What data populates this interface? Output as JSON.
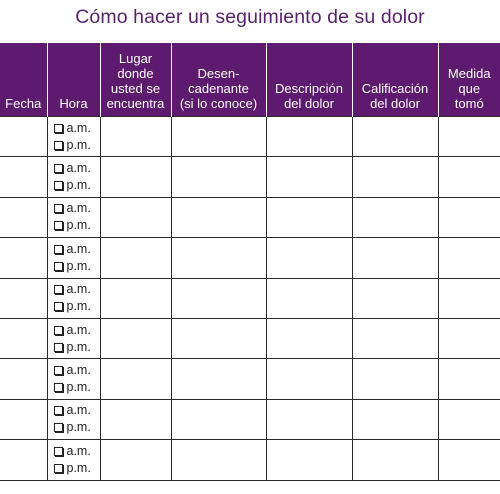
{
  "title": "Cómo hacer un seguimiento de su dolor",
  "columns": [
    "Fecha",
    "Hora",
    "Lugar donde usted se encuentra",
    "Desen- cadenante (si lo conoce)",
    "Descripción del dolor",
    "Calificación del dolor",
    "Medida que tomó"
  ],
  "column_lines": [
    [
      "Fecha"
    ],
    [
      "Hora"
    ],
    [
      "Lugar",
      "donde",
      "usted se",
      "encuentra"
    ],
    [
      "Desen-",
      "cadenante",
      "(si lo conoce)"
    ],
    [
      "Descripción",
      "del dolor"
    ],
    [
      "Calificación",
      "del dolor"
    ],
    [
      "Medida",
      "que",
      "tomó"
    ]
  ],
  "time_options": [
    "a.m.",
    "p.m."
  ],
  "row_count": 9,
  "colors": {
    "header_bg": "#5e1a6e",
    "title": "#5a1f6e"
  }
}
